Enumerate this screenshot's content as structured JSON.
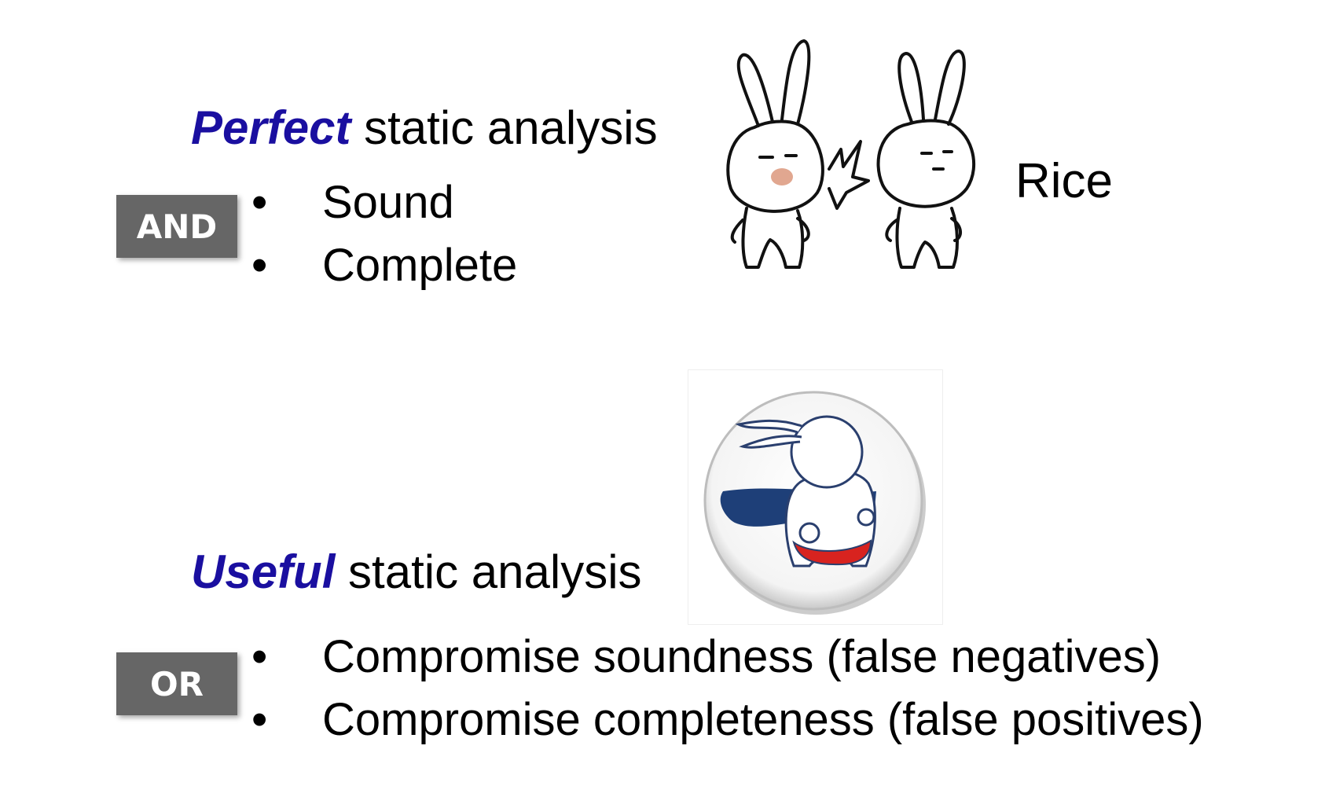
{
  "perfect": {
    "emphasis": "Perfect",
    "rest": "static analysis",
    "connector": "AND",
    "items": [
      "Sound",
      "Complete"
    ]
  },
  "rice_label": "Rice",
  "useful": {
    "emphasis": "Useful",
    "rest": "static analysis",
    "connector": "OR",
    "items": [
      "Compromise soundness (false negatives)",
      "Compromise completeness (false positives)"
    ]
  },
  "colors": {
    "emphasis": "#1a0fa0",
    "tag_bg": "#666666",
    "cape": "#1e3f78",
    "trunks": "#d8231f"
  },
  "images": {
    "rabbits": "two-rabbits-slap-illustration",
    "hero": "superhero-rabbit-badge-illustration"
  }
}
